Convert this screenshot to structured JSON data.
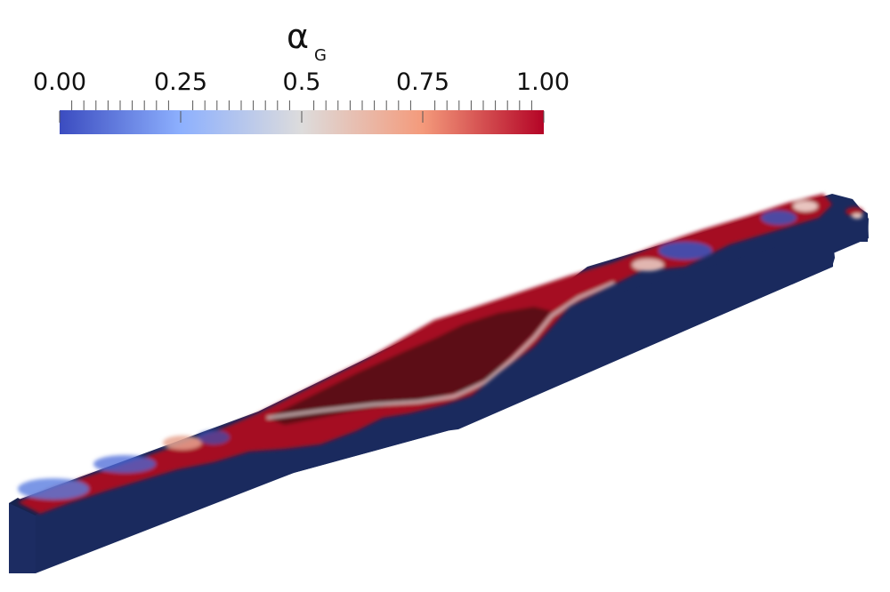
{
  "colorbar": {
    "title_symbol": "α",
    "title_subscript": "G",
    "min": 0.0,
    "max": 1.0,
    "tick_labels": [
      "0.00",
      "0.25",
      "0.5",
      "0.75",
      "1.00"
    ],
    "tick_values": [
      0.0,
      0.25,
      0.5,
      0.75,
      1.0
    ],
    "colors": {
      "low": "#3b4cc0",
      "mid": "#dddcdc",
      "high": "#b40426"
    }
  },
  "scene": {
    "background": "#ffffff",
    "liquid_color": "#1a2a5e",
    "gas_color": "#a50f22",
    "gas_dark_color": "#5a0a12",
    "interface_color": "#dcd4d2"
  }
}
